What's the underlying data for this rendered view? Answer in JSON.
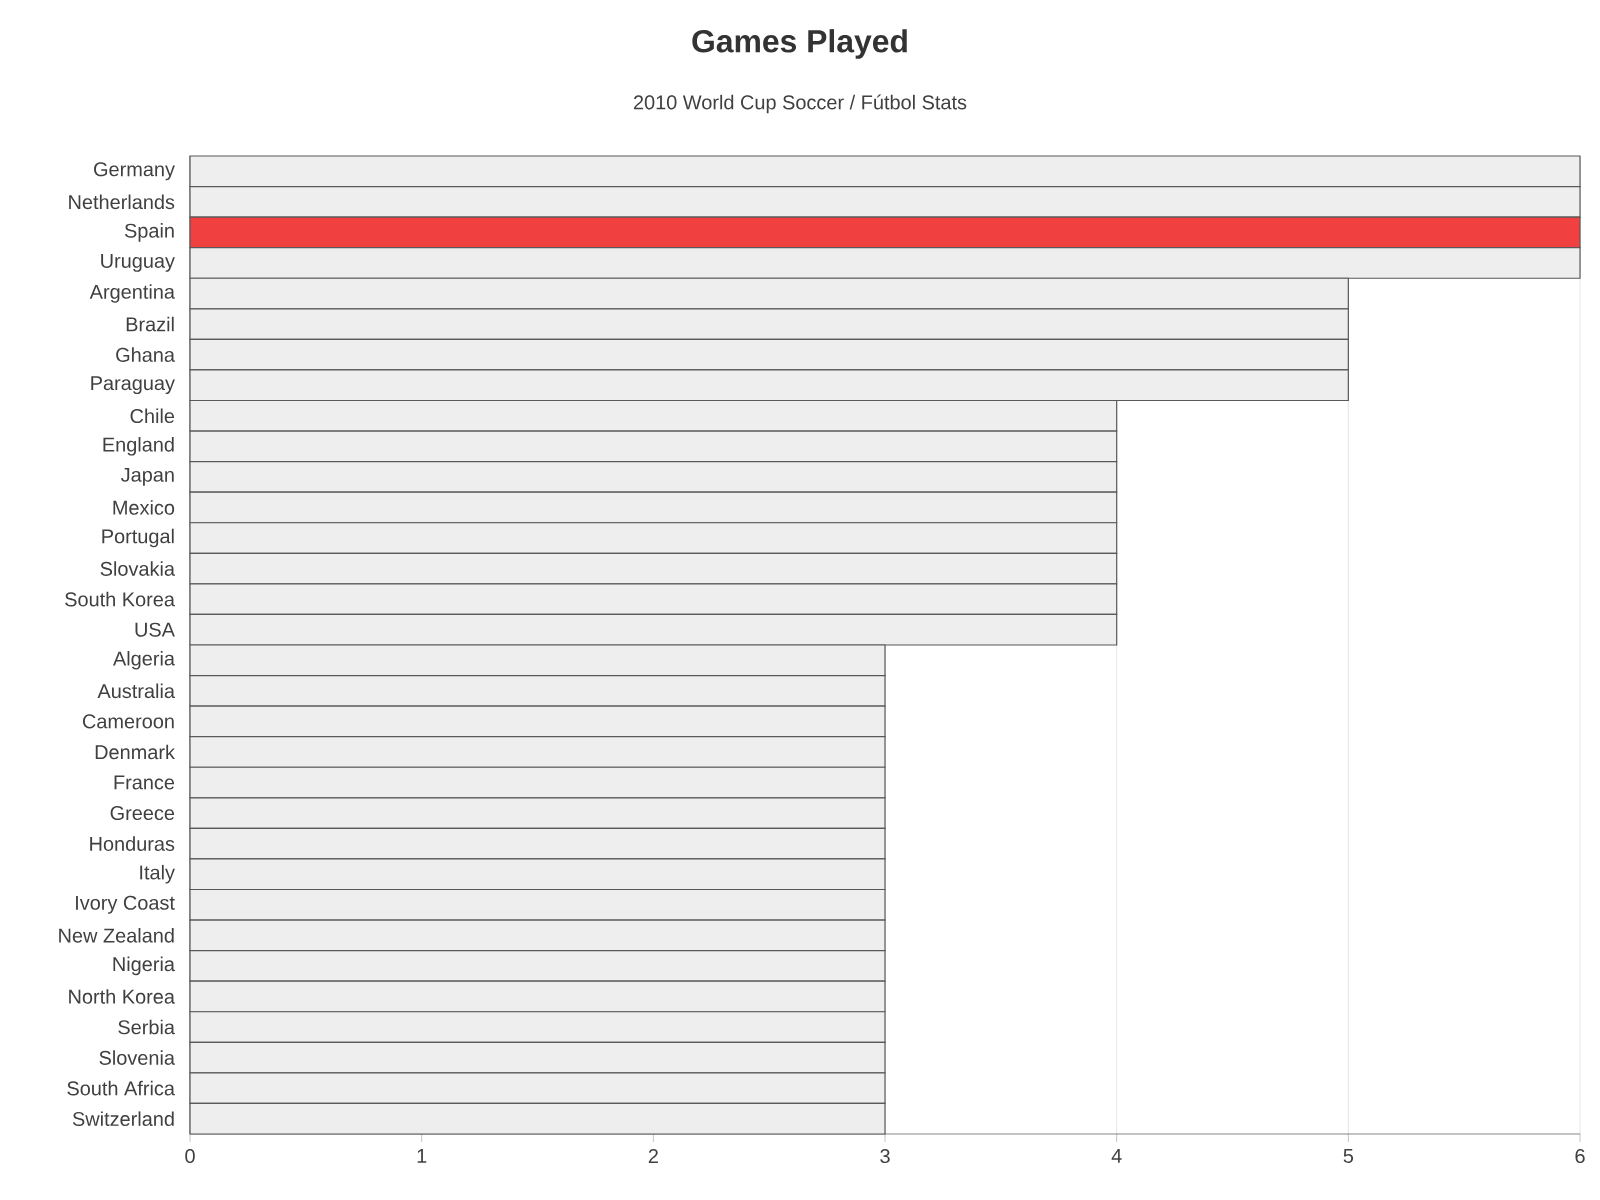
{
  "chart_data": {
    "type": "bar",
    "orientation": "horizontal",
    "title": "Games Played",
    "subtitle": "2010 World Cup Soccer / Fútbol Stats",
    "categories": [
      "Germany",
      "Netherlands",
      "Spain",
      "Uruguay",
      "Argentina",
      "Brazil",
      "Ghana",
      "Paraguay",
      "Chile",
      "England",
      "Japan",
      "Mexico",
      "Portugal",
      "Slovakia",
      "South Korea",
      "USA",
      "Algeria",
      "Australia",
      "Cameroon",
      "Denmark",
      "France",
      "Greece",
      "Honduras",
      "Italy",
      "Ivory Coast",
      "New Zealand",
      "Nigeria",
      "North Korea",
      "Serbia",
      "Slovenia",
      "South Africa",
      "Switzerland"
    ],
    "values": [
      6,
      6,
      6,
      6,
      5,
      5,
      5,
      5,
      4,
      4,
      4,
      4,
      4,
      4,
      4,
      4,
      3,
      3,
      3,
      3,
      3,
      3,
      3,
      3,
      3,
      3,
      3,
      3,
      3,
      3,
      3,
      3
    ],
    "colors": [
      "#eeeeee",
      "#eeeeee",
      "#f04040",
      "#eeeeee",
      "#eeeeee",
      "#eeeeee",
      "#eeeeee",
      "#eeeeee",
      "#eeeeee",
      "#eeeeee",
      "#eeeeee",
      "#eeeeee",
      "#eeeeee",
      "#eeeeee",
      "#eeeeee",
      "#eeeeee",
      "#eeeeee",
      "#eeeeee",
      "#eeeeee",
      "#eeeeee",
      "#eeeeee",
      "#eeeeee",
      "#eeeeee",
      "#eeeeee",
      "#eeeeee",
      "#eeeeee",
      "#eeeeee",
      "#eeeeee",
      "#eeeeee",
      "#eeeeee",
      "#eeeeee",
      "#eeeeee"
    ],
    "xlim": [
      0,
      6
    ],
    "xticks": [
      0,
      1,
      2,
      3,
      4,
      5,
      6
    ],
    "grid": "x"
  }
}
